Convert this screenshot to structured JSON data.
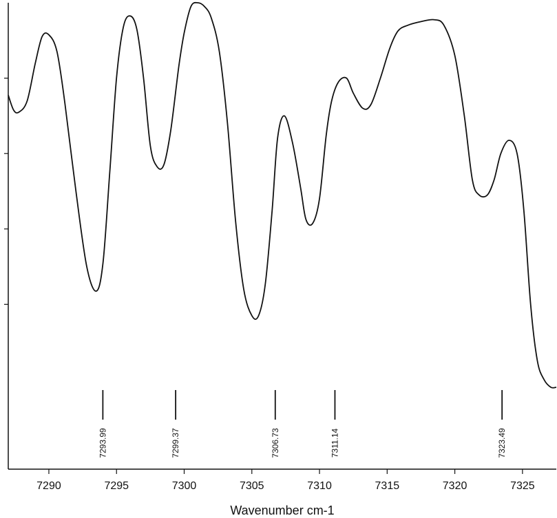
{
  "chart_data": {
    "type": "line",
    "title": "",
    "xlabel": "Wavenumber cm-1",
    "ylabel": "",
    "xlim": [
      7287.0,
      7327.5
    ],
    "ylim": [
      0.0,
      1.0
    ],
    "grid": false,
    "x_ticks": [
      7290,
      7295,
      7300,
      7305,
      7310,
      7315,
      7320,
      7325
    ],
    "x_tick_labels": [
      "7290",
      "7295",
      "7300",
      "7305",
      "7310",
      "7315",
      "7320",
      "7325"
    ],
    "y_ticks": [
      0.2,
      0.4,
      0.6,
      0.8
    ],
    "series": [
      {
        "x": [
          7287.0,
          7287.4,
          7287.8,
          7288.4,
          7289.0,
          7289.5,
          7290.0,
          7290.6,
          7291.2,
          7292.0,
          7292.8,
          7293.5,
          7294.0,
          7294.5,
          7295.0,
          7295.5,
          7296.0,
          7296.5,
          7297.0,
          7297.5,
          7298.0,
          7298.5,
          7299.0,
          7299.6,
          7300.0,
          7300.5,
          7301.0,
          7301.5,
          7302.0,
          7302.6,
          7303.2,
          7303.8,
          7304.4,
          7305.0,
          7305.5,
          7306.0,
          7306.5,
          7306.9,
          7307.4,
          7308.0,
          7308.6,
          7309.0,
          7309.5,
          7310.0,
          7310.5,
          7310.9,
          7311.4,
          7312.0,
          7312.5,
          7313.2,
          7313.8,
          7314.5,
          7315.2,
          7315.8,
          7316.5,
          7317.5,
          7318.5,
          7319.2,
          7320.0,
          7320.7,
          7321.3,
          7321.8,
          7322.4,
          7322.9,
          7323.4,
          7324.0,
          7324.6,
          7325.1,
          7325.6,
          7326.1,
          7326.6,
          7327.1,
          7327.5
        ],
        "y": [
          0.755,
          0.715,
          0.71,
          0.74,
          0.84,
          0.91,
          0.915,
          0.87,
          0.73,
          0.5,
          0.3,
          0.235,
          0.31,
          0.55,
          0.8,
          0.935,
          0.965,
          0.93,
          0.8,
          0.62,
          0.565,
          0.57,
          0.66,
          0.83,
          0.92,
          0.99,
          1.0,
          0.99,
          0.96,
          0.87,
          0.68,
          0.42,
          0.24,
          0.17,
          0.17,
          0.255,
          0.45,
          0.64,
          0.7,
          0.63,
          0.51,
          0.425,
          0.415,
          0.48,
          0.65,
          0.74,
          0.79,
          0.8,
          0.76,
          0.72,
          0.73,
          0.8,
          0.88,
          0.925,
          0.94,
          0.95,
          0.955,
          0.94,
          0.86,
          0.7,
          0.53,
          0.49,
          0.49,
          0.53,
          0.6,
          0.635,
          0.6,
          0.45,
          0.2,
          0.05,
          0.0,
          -0.02,
          -0.02
        ]
      }
    ],
    "annotations": [
      {
        "x": 7293.99,
        "label": "7293.99"
      },
      {
        "x": 7299.37,
        "label": "7299.37"
      },
      {
        "x": 7306.73,
        "label": "7306.73"
      },
      {
        "x": 7311.14,
        "label": "7311.14"
      },
      {
        "x": 7323.49,
        "label": "7323.49"
      }
    ]
  }
}
